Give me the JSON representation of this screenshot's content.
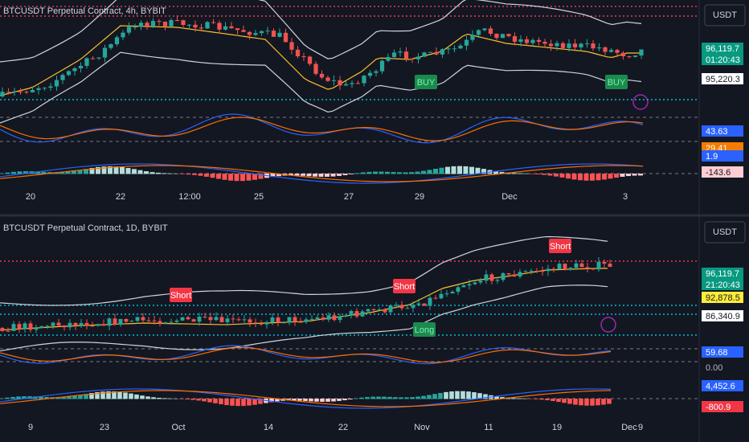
{
  "top_panel": {
    "title": "BTCUSDT Perpetual Contract, 4h, BYBIT",
    "currency_button": "USDT",
    "price_labels": [
      {
        "text": "96,119.7",
        "bg": "#089981",
        "fg": "#ffffff"
      },
      {
        "text": "01:20:43",
        "bg": "#089981",
        "fg": "#ffffff"
      },
      {
        "text": "95,220.3",
        "bg": "#ffffff",
        "fg": "#131722"
      },
      {
        "text": "43.63",
        "bg": "#2962ff",
        "fg": "#ffffff"
      },
      {
        "text": "29.41",
        "bg": "#f57c00",
        "fg": "#ffffff"
      },
      {
        "text": "1.9",
        "bg": "#2962ff",
        "fg": "#ffffff"
      },
      {
        "text": "-143.6",
        "bg": "#ffcdd2",
        "fg": "#131722"
      }
    ],
    "x_axis": [
      "20",
      "22",
      "12:00",
      "25",
      "27",
      "29",
      "Dec",
      "3"
    ],
    "signals": [
      {
        "text": "BUY",
        "kind": "buy"
      },
      {
        "text": "BUY",
        "kind": "buy"
      }
    ]
  },
  "bottom_panel": {
    "title": "BTCUSDT Perpetual Contract, 1D, BYBIT",
    "currency_button": "USDT",
    "price_labels": [
      {
        "text": "96,119.7",
        "bg": "#089981",
        "fg": "#ffffff"
      },
      {
        "text": "21:20:43",
        "bg": "#089981",
        "fg": "#ffffff"
      },
      {
        "text": "92,878.5",
        "bg": "#ffeb3b",
        "fg": "#131722"
      },
      {
        "text": "86,340.9",
        "bg": "#ffffff",
        "fg": "#131722"
      },
      {
        "text": "59.68",
        "bg": "#2962ff",
        "fg": "#ffffff"
      },
      {
        "text": "0.00",
        "bg": "#131722",
        "fg": "#b2b5be"
      },
      {
        "text": "4,452.6",
        "bg": "#2962ff",
        "fg": "#ffffff"
      },
      {
        "text": "-800.9",
        "bg": "#f23645",
        "fg": "#ffffff"
      }
    ],
    "x_axis": [
      "9",
      "23",
      "Oct",
      "14",
      "22",
      "Nov",
      "11",
      "19",
      "Dec",
      "9"
    ],
    "signals": [
      {
        "text": "Short",
        "kind": "sell"
      },
      {
        "text": "Short",
        "kind": "sell"
      },
      {
        "text": "Short",
        "kind": "sell"
      },
      {
        "text": "Long",
        "kind": "buy"
      }
    ]
  }
}
